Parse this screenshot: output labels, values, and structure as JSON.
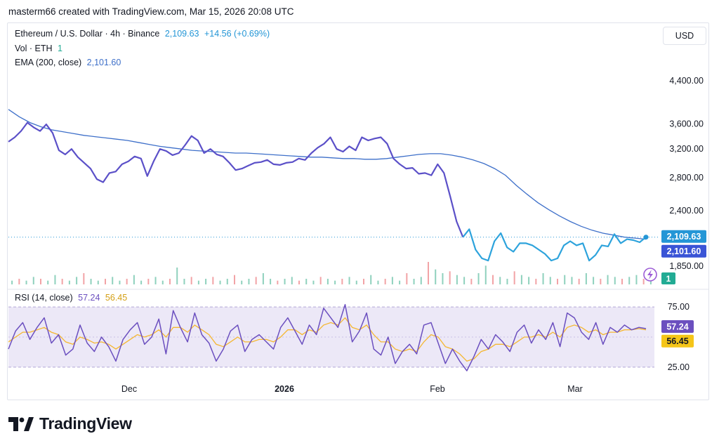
{
  "header": {
    "credit": "masterm66 created with TradingView.com, Mar 15, 2026 20:08 UTC"
  },
  "legend": {
    "symbol": "Ethereum / U.S. Dollar · 4h · Binance",
    "price": "2,109.63",
    "change": "+14.56 (+0.69%)",
    "vol_label": "Vol · ETH",
    "vol_value": "1",
    "ema_label": "EMA (200, close)",
    "ema_value": "2,101.60",
    "rsi_label": "RSI (14, close)",
    "rsi_value": "57.24",
    "rsi_ma_value": "56.45"
  },
  "axis": {
    "currency_button": "USD",
    "price_ticks": [
      "4,400.00",
      "3,600.00",
      "3,200.00",
      "2,800.00",
      "2,400.00",
      "1,850.00"
    ],
    "rsi_ticks": [
      "75.00",
      "25.00"
    ],
    "time_labels": [
      "Dec",
      "2026",
      "Feb",
      "Mar"
    ],
    "price_badge": "2,109.63",
    "ema_badge": "2,101.60",
    "vol_badge": "1",
    "rsi_badge": "57.24",
    "rsi_ma_badge": "56.45"
  },
  "brand": {
    "name": "TradingView"
  },
  "colors": {
    "price_line": "#5b50c8",
    "price_line_recent": "#2da3dc",
    "ema_line": "#3d6fc9",
    "rsi_line": "#6b4fbf",
    "rsi_ma_line": "#f5b731",
    "rsi_band": "#ece8f7",
    "up_volume": "#8fd1bd",
    "down_volume": "#f2a3a6",
    "price_badge": "#2496d6",
    "ema_badge": "#3a54d6",
    "rsi_ma_badge": "#f5c518",
    "vol_badge": "#22ab94"
  },
  "chart_data": [
    {
      "type": "line",
      "title": "Ethereum / U.S. Dollar · 4h · Binance",
      "scale": "log",
      "ylim": [
        1700,
        4700
      ],
      "x_labels": [
        "Dec",
        "2026",
        "Feb",
        "Mar"
      ],
      "series": [
        {
          "name": "Ethereum / U.S. Dollar",
          "values": [
            3310,
            3380,
            3480,
            3620,
            3540,
            3480,
            3590,
            3450,
            3180,
            3120,
            3200,
            3080,
            3000,
            2920,
            2780,
            2740,
            2860,
            2880,
            2980,
            3020,
            3090,
            3060,
            2820,
            3020,
            3200,
            3170,
            3110,
            3140,
            3260,
            3400,
            3330,
            3140,
            3200,
            3120,
            3090,
            3000,
            2900,
            2920,
            2960,
            3000,
            3010,
            3040,
            2980,
            2970,
            3000,
            3010,
            3060,
            3040,
            3140,
            3220,
            3280,
            3380,
            3200,
            3160,
            3240,
            3180,
            3380,
            3330,
            3360,
            3380,
            3280,
            3060,
            2980,
            2920,
            2930,
            2850,
            2860,
            2830,
            2980,
            2860,
            2560,
            2280,
            2120,
            2200,
            2000,
            1920,
            1900,
            2080,
            2160,
            2020,
            1980,
            2060,
            2060,
            2040,
            2000,
            1960,
            1900,
            1920,
            2040,
            2080,
            2040,
            2060,
            1900,
            1950,
            2040,
            2030,
            2150,
            2060,
            2100,
            2090,
            2070,
            2120
          ]
        },
        {
          "name": "EMA (200, close)",
          "values": [
            3850,
            3720,
            3620,
            3550,
            3500,
            3470,
            3440,
            3410,
            3390,
            3370,
            3350,
            3330,
            3300,
            3270,
            3240,
            3220,
            3200,
            3180,
            3170,
            3160,
            3150,
            3140,
            3140,
            3130,
            3120,
            3110,
            3100,
            3090,
            3080,
            3080,
            3070,
            3060,
            3060,
            3050,
            3050,
            3060,
            3080,
            3100,
            3120,
            3130,
            3130,
            3110,
            3080,
            3040,
            2990,
            2920,
            2830,
            2700,
            2590,
            2490,
            2410,
            2340,
            2280,
            2230,
            2190,
            2160,
            2140,
            2120,
            2110,
            2100
          ]
        }
      ]
    },
    {
      "type": "bar",
      "title": "Vol · ETH",
      "series": [
        {
          "name": "Vol · ETH",
          "values": [
            2,
            3,
            2,
            4,
            3,
            2,
            5,
            3,
            2,
            4,
            6,
            3,
            2,
            3,
            4,
            2,
            3,
            5,
            2,
            3,
            4,
            2,
            3,
            9,
            3,
            4,
            2,
            3,
            4,
            2,
            3,
            5,
            2,
            3,
            4,
            6,
            3,
            2,
            3,
            4,
            2,
            3,
            2,
            4,
            3,
            2,
            3,
            4,
            2,
            3,
            5,
            2,
            3,
            4,
            2,
            6,
            3,
            4,
            12,
            8,
            6,
            7,
            5,
            4,
            3,
            6,
            10,
            5,
            4,
            3,
            7,
            5,
            4,
            3,
            6,
            4,
            3,
            5,
            4,
            3,
            6,
            4,
            3,
            5,
            4,
            3,
            4,
            5,
            3,
            2
          ]
        }
      ]
    },
    {
      "type": "line",
      "title": "RSI (14, close)",
      "ylim": [
        15,
        85
      ],
      "yticks": [
        75,
        25
      ],
      "series": [
        {
          "name": "RSI (14, close)",
          "values": [
            40,
            55,
            62,
            48,
            58,
            66,
            45,
            52,
            35,
            40,
            60,
            45,
            38,
            50,
            42,
            30,
            48,
            56,
            62,
            44,
            50,
            65,
            36,
            72,
            58,
            46,
            70,
            52,
            45,
            30,
            40,
            55,
            60,
            38,
            48,
            52,
            46,
            40,
            58,
            66,
            55,
            44,
            60,
            52,
            74,
            66,
            58,
            77,
            46,
            55,
            70,
            40,
            35,
            50,
            28,
            38,
            44,
            36,
            60,
            62,
            45,
            28,
            40,
            30,
            22,
            34,
            48,
            40,
            52,
            46,
            38,
            54,
            60,
            45,
            56,
            48,
            62,
            42,
            70,
            66,
            54,
            48,
            62,
            44,
            58,
            54,
            60,
            56,
            58,
            57
          ]
        },
        {
          "name": "RSI MA",
          "values": [
            46,
            50,
            54,
            54,
            56,
            58,
            54,
            52,
            46,
            44,
            50,
            48,
            45,
            46,
            44,
            40,
            44,
            48,
            52,
            50,
            52,
            56,
            50,
            58,
            58,
            54,
            60,
            56,
            52,
            44,
            42,
            46,
            50,
            46,
            46,
            48,
            48,
            46,
            50,
            56,
            56,
            52,
            56,
            54,
            60,
            62,
            60,
            66,
            58,
            56,
            60,
            52,
            46,
            46,
            40,
            38,
            40,
            38,
            46,
            52,
            50,
            42,
            40,
            36,
            30,
            32,
            38,
            40,
            44,
            44,
            42,
            46,
            50,
            50,
            52,
            50,
            54,
            50,
            58,
            60,
            58,
            54,
            56,
            52,
            54,
            54,
            56,
            56,
            57,
            56
          ]
        }
      ]
    }
  ]
}
